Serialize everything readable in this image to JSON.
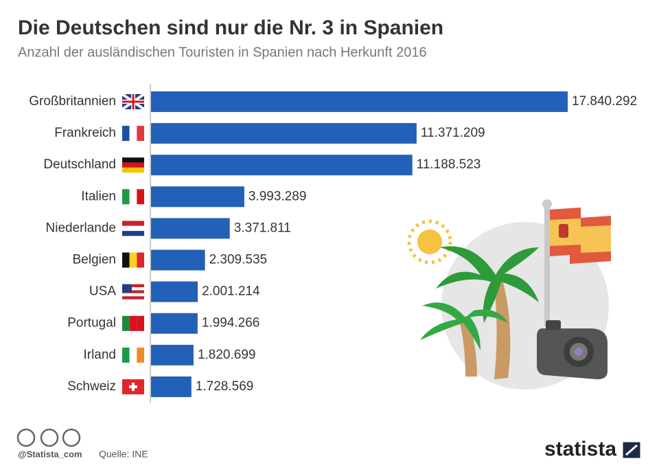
{
  "chart_data": {
    "type": "bar",
    "orientation": "horizontal",
    "title": "Die Deutschen sind nur die Nr. 3 in Spanien",
    "subtitle": "Anzahl der ausländischen Touristen in Spanien nach Herkunft 2016",
    "categories": [
      "Großbritannien",
      "Frankreich",
      "Deutschland",
      "Italien",
      "Niederlande",
      "Belgien",
      "USA",
      "Portugal",
      "Irland",
      "Schweiz"
    ],
    "values": [
      17840292,
      11371209,
      11188523,
      3993289,
      3371811,
      2309535,
      2001214,
      1994266,
      1820699,
      1728569
    ],
    "value_labels": [
      "17.840.292",
      "11.371.209",
      "11.188.523",
      "3.993.289",
      "3.371.811",
      "2.309.535",
      "2.001.214",
      "1.994.266",
      "1.820.699",
      "1.728.569"
    ],
    "color": "#2360b8"
  },
  "footer": {
    "handle": "@Statista_com",
    "source": "Quelle: INE",
    "brand": "statista"
  }
}
